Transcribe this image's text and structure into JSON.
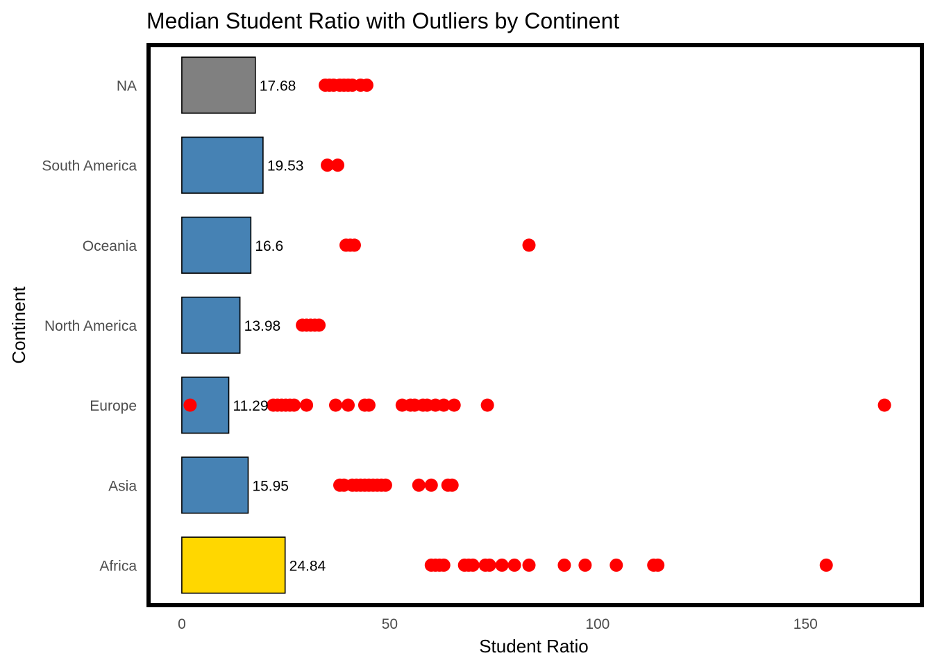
{
  "chart_data": {
    "type": "bar",
    "orientation": "horizontal",
    "title": "Median Student Ratio with Outliers by Continent",
    "xlabel": "Student Ratio",
    "ylabel": "Continent",
    "xlim": [
      -8,
      178
    ],
    "x_ticks": [
      0,
      50,
      100,
      150
    ],
    "grid": false,
    "legend": "none",
    "categories": [
      "Africa",
      "Asia",
      "Europe",
      "North America",
      "Oceania",
      "South America",
      "NA"
    ],
    "values": [
      24.84,
      15.95,
      11.29,
      13.98,
      16.6,
      19.53,
      17.68
    ],
    "value_labels": [
      "24.84",
      "15.95",
      "11.29",
      "13.98",
      "16.6",
      "19.53",
      "17.68"
    ],
    "bar_colors": [
      "#FFD700",
      "#4682B4",
      "#4682B4",
      "#4682B4",
      "#4682B4",
      "#4682B4",
      "#808080"
    ],
    "outlier_color": "#FF0000",
    "outliers": {
      "Africa": [
        60,
        61,
        62,
        63,
        68,
        69,
        70,
        73,
        74,
        77,
        80,
        83.5,
        92,
        97,
        104.5,
        113.5,
        114.5,
        155
      ],
      "Asia": [
        38,
        39,
        41,
        42,
        43,
        44,
        45,
        46,
        47,
        48,
        49,
        57,
        60,
        64,
        65
      ],
      "Europe": [
        2,
        22,
        23,
        24,
        25,
        26,
        27,
        30,
        37,
        40,
        44,
        45,
        53,
        55,
        56,
        58,
        59,
        61,
        63,
        65.5,
        73.5,
        169
      ],
      "North America": [
        29,
        30,
        31,
        32,
        33
      ],
      "Oceania": [
        39.5,
        40.5,
        41.5,
        83.5
      ],
      "South America": [
        35,
        37.5
      ],
      "NA": [
        34.5,
        35.5,
        36.5,
        38,
        39,
        40,
        41,
        43,
        44.5
      ]
    }
  }
}
